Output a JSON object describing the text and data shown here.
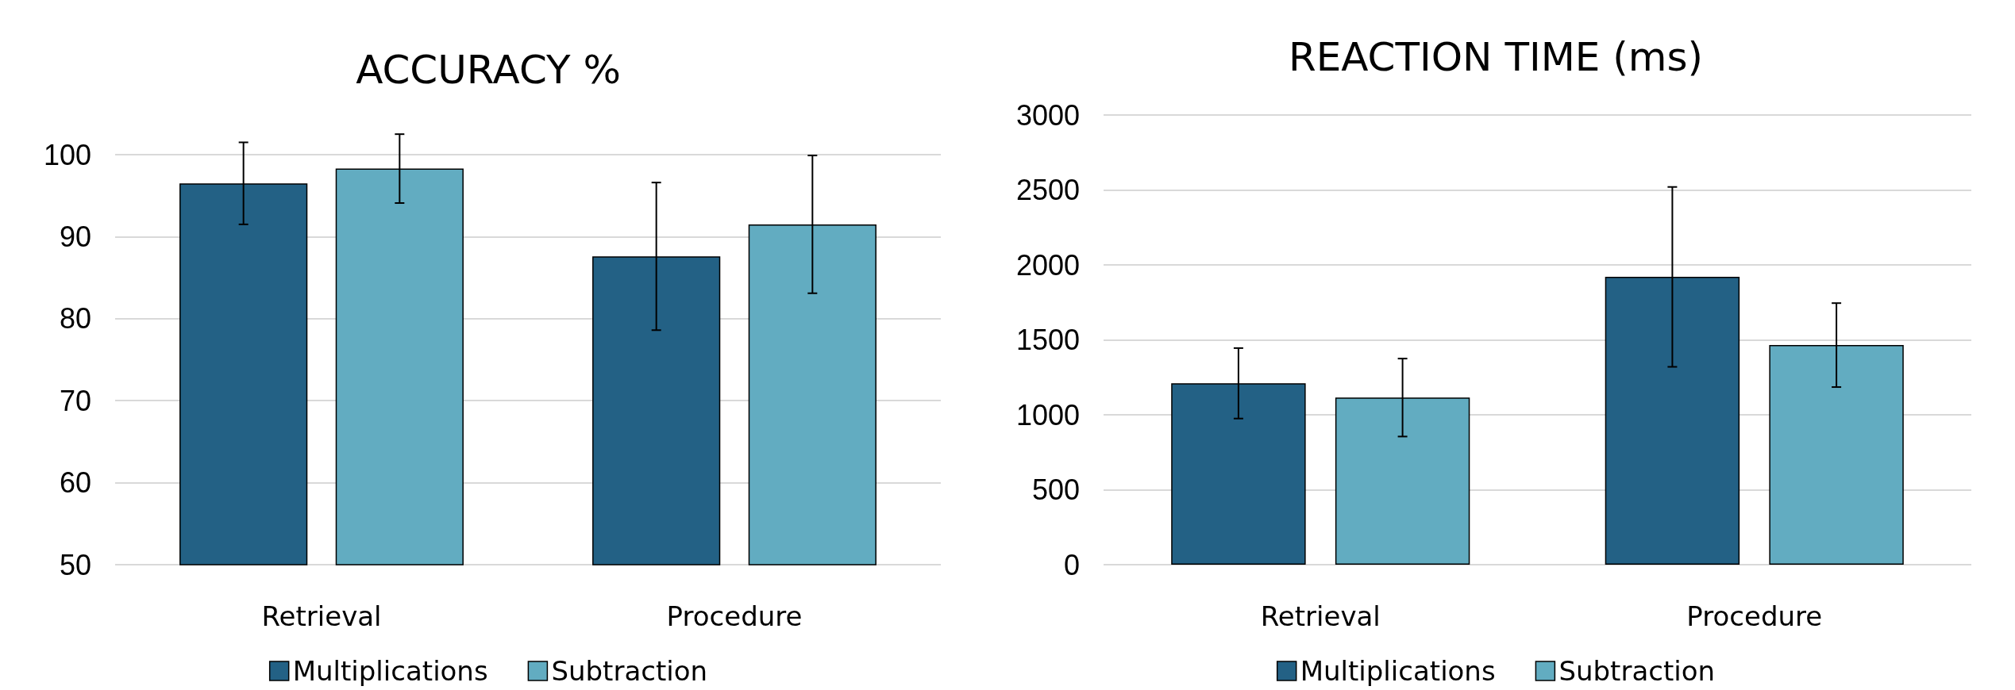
{
  "chart_data": [
    {
      "type": "bar",
      "title": "ACCURACY %",
      "categories": [
        "Retrieval",
        "Procedure"
      ],
      "ylim": [
        50,
        100
      ],
      "yticks": [
        50,
        60,
        70,
        80,
        90,
        100
      ],
      "grid": "y",
      "legend": "bottom",
      "series": [
        {
          "name": "Multiplications",
          "color": "#236185",
          "values": [
            96.5,
            87.6
          ],
          "errors": [
            5,
            9
          ]
        },
        {
          "name": "Subtraction",
          "color": "#62acc1",
          "values": [
            98.3,
            91.5
          ],
          "errors": [
            4.2,
            8.4
          ]
        }
      ]
    },
    {
      "type": "bar",
      "title": "REACTION TIME (ms)",
      "categories": [
        "Retrieval",
        "Procedure"
      ],
      "ylim": [
        0,
        3000
      ],
      "yticks": [
        0,
        500,
        1000,
        1500,
        2000,
        2500,
        3000
      ],
      "grid": "y",
      "legend": "bottom",
      "series": [
        {
          "name": "Multiplications",
          "color": "#236185",
          "values": [
            1210,
            1920
          ],
          "errors": [
            235,
            600
          ]
        },
        {
          "name": "Subtraction",
          "color": "#62acc1",
          "values": [
            1115,
            1465
          ],
          "errors": [
            260,
            280
          ]
        }
      ]
    }
  ]
}
